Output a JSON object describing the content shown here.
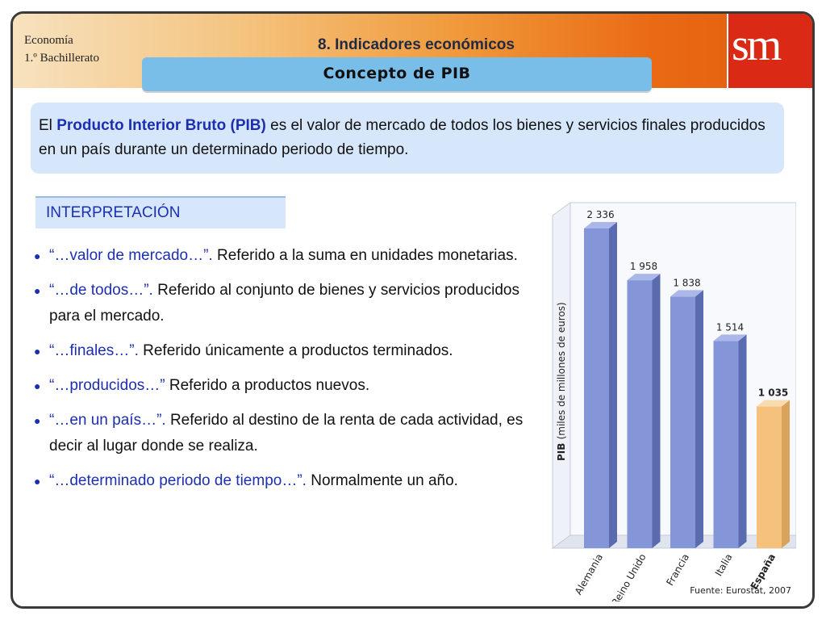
{
  "header": {
    "course": "Economía",
    "level": "1.º Bachillerato",
    "section": "8. Indicadores económicos",
    "topic": "Concepto de PIB",
    "logo": "sm"
  },
  "definition": {
    "prefix": "El ",
    "term": "Producto Interior Bruto (PIB)",
    "rest": " es el valor de mercado de todos los bienes y servicios finales producidos en un país durante un determinado periodo de tiempo."
  },
  "interpretation": {
    "label": "INTERPRETACIÓN",
    "items": [
      {
        "quote": "“…valor de mercado…”.",
        "text": " Referido a la suma en unidades monetarias."
      },
      {
        "quote": "“…de todos…”.",
        "text": " Referido al conjunto de bienes y servicios producidos para el mercado."
      },
      {
        "quote": "“…finales…”.",
        "text": " Referido únicamente a productos terminados."
      },
      {
        "quote": "“…producidos…”",
        "text": " Referido a productos nuevos."
      },
      {
        "quote": "“…en un país…”.",
        "text": " Referido al destino de la renta de cada actividad, es decir al lugar donde se realiza."
      },
      {
        "quote": "“…determinado periodo de tiempo…”.",
        "text": " Normalmente un año."
      }
    ],
    "bullet_icon": "bullet-dot-icon"
  },
  "colors": {
    "accent_blue": "#1c2fb0",
    "bar_blue": "#8496d8",
    "bar_highlight": "#f4c27c",
    "logo_red": "#da2a16"
  },
  "chart_data": {
    "type": "bar",
    "categories": [
      "Alemania",
      "Reino Unido",
      "Francia",
      "Italia",
      "España"
    ],
    "values": [
      2336,
      1958,
      1838,
      1514,
      1035
    ],
    "value_labels": [
      "2 336",
      "1 958",
      "1 838",
      "1 514",
      "1 035"
    ],
    "highlight_category": "España",
    "title": "",
    "xlabel": "",
    "ylabel_main": "PIB",
    "ylabel_unit": "(miles de millones de euros)",
    "ylim": [
      0,
      2336
    ],
    "source": "Fuente: Eurostat, 2007",
    "grid": false
  }
}
